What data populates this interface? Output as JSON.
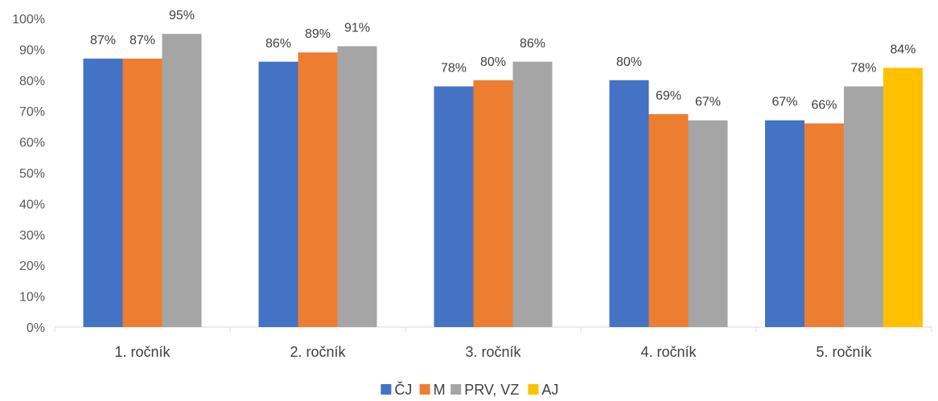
{
  "chart_data": {
    "type": "bar",
    "categories": [
      "1. ročník",
      "2. ročník",
      "3. ročník",
      "4. ročník",
      "5. ročník"
    ],
    "series": [
      {
        "name": "ČJ",
        "color": "#4472C4",
        "values": [
          87,
          86,
          78,
          80,
          67
        ]
      },
      {
        "name": "M",
        "color": "#ED7D31",
        "values": [
          87,
          89,
          80,
          69,
          66
        ]
      },
      {
        "name": "PRV, VZ",
        "color": "#A5A5A5",
        "values": [
          95,
          91,
          86,
          67,
          78
        ]
      },
      {
        "name": "AJ",
        "color": "#FFC000",
        "values": [
          null,
          null,
          null,
          null,
          84
        ]
      }
    ],
    "data_labels": [
      [
        "87%",
        "86%",
        "78%",
        "80%",
        "67%"
      ],
      [
        "87%",
        "89%",
        "80%",
        "69%",
        "66%"
      ],
      [
        "95%",
        "91%",
        "86%",
        "67%",
        "78%"
      ],
      [
        null,
        null,
        null,
        null,
        "84%"
      ]
    ],
    "y_ticks": [
      "0%",
      "10%",
      "20%",
      "30%",
      "40%",
      "50%",
      "60%",
      "70%",
      "80%",
      "90%",
      "100%"
    ],
    "ylim": [
      0,
      100
    ],
    "y_unit": "%",
    "grid": false,
    "legend_position": "bottom",
    "axis_color": "#D9D9D9"
  }
}
